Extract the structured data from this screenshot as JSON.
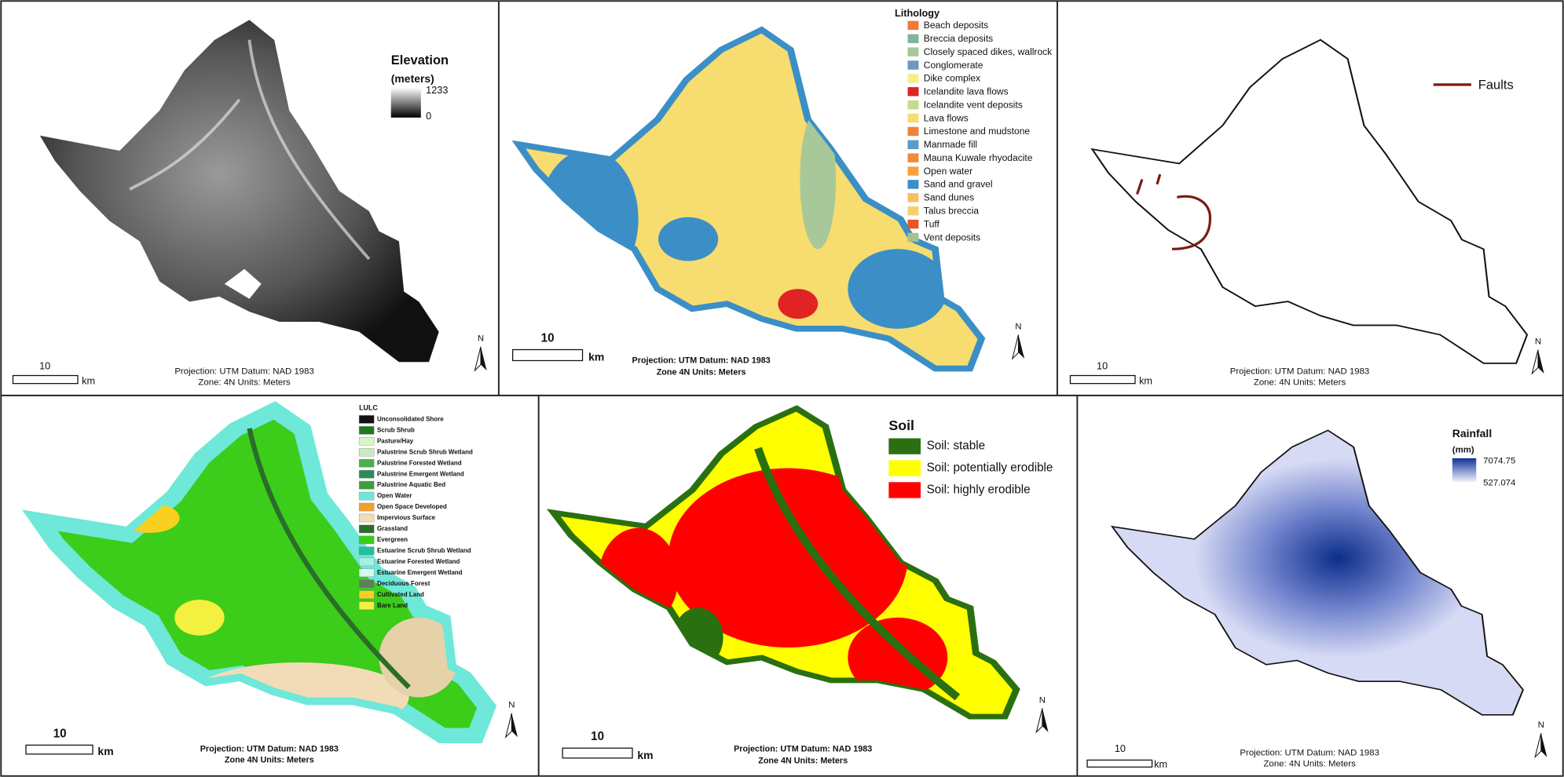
{
  "panels": [
    {
      "legend": {
        "title": "Elevation",
        "subtitle": "(meters)",
        "max": 1233,
        "min": 0
      },
      "scale": {
        "label": 10,
        "unit": "km"
      },
      "north": "N",
      "projection": [
        "Projection: UTM    Datum: NAD 1983",
        "Zone: 4N    Units: Meters"
      ]
    },
    {
      "legend": {
        "title": "Lithology",
        "items": [
          {
            "label": "Beach deposits",
            "color": "#f07a3c"
          },
          {
            "label": "Breccia deposits",
            "color": "#7fb59a"
          },
          {
            "label": "Closely spaced dikes, wallrock",
            "color": "#a8c89a"
          },
          {
            "label": "Conglomerate",
            "color": "#6a9bb8"
          },
          {
            "label": "Dike complex",
            "color": "#f8ef8c"
          },
          {
            "label": "Icelandite lava flows",
            "color": "#e02424"
          },
          {
            "label": "Icelandite vent deposits",
            "color": "#c9d98c"
          },
          {
            "label": "Lava flows",
            "color": "#f7dc6f"
          },
          {
            "label": "Limestone and mudstone",
            "color": "#f0823a"
          },
          {
            "label": "Manmade fill",
            "color": "#5a9cc8"
          },
          {
            "label": "Mauna Kuwale rhyodacite",
            "color": "#f08a3c"
          },
          {
            "label": "Open water",
            "color": "#f4a23c"
          },
          {
            "label": "Sand and gravel",
            "color": "#3b8fc6"
          },
          {
            "label": "Sand dunes",
            "color": "#f6c060"
          },
          {
            "label": "Talus breccia",
            "color": "#f5d070"
          },
          {
            "label": "Tuff",
            "color": "#e8552a"
          },
          {
            "label": "Vent deposits",
            "color": "#a8c08c"
          }
        ]
      },
      "scale": {
        "label": 10,
        "unit": "km"
      },
      "north": "N",
      "projection": [
        "Projection: UTM  Datum: NAD 1983",
        "Zone 4N Units: Meters"
      ]
    },
    {
      "legend": {
        "items": [
          {
            "label": "Faults",
            "color": "#7a1a12"
          }
        ]
      },
      "scale": {
        "label": 10,
        "unit": "km"
      },
      "north": "N",
      "projection": [
        "Projection: UTM    Datum: NAD 1983",
        "Zone: 4N    Units: Meters"
      ]
    },
    {
      "legend": {
        "title": "LULC",
        "items": [
          {
            "label": "Unconsolidated Shore",
            "color": "#111111"
          },
          {
            "label": "Scrub Shrub",
            "color": "#1e7a1e"
          },
          {
            "label": "Pasture/Hay",
            "color": "#d8f5c8"
          },
          {
            "label": "Palustrine Scrub Shrub Wetland",
            "color": "#c8ecc0"
          },
          {
            "label": "Palustrine Forested Wetland",
            "color": "#4caf50"
          },
          {
            "label": "Palustrine Emergent Wetland",
            "color": "#2e8b57"
          },
          {
            "label": "Palustrine Aquatic Bed",
            "color": "#3e9e3e"
          },
          {
            "label": "Open Water",
            "color": "#6ee8d8"
          },
          {
            "label": "Open Space Developed",
            "color": "#f0a030"
          },
          {
            "label": "Impervious Surface",
            "color": "#f2dcb8"
          },
          {
            "label": "Grassland",
            "color": "#2a6e2a"
          },
          {
            "label": "Evergreen",
            "color": "#3ccc1a"
          },
          {
            "label": "Estuarine Scrub Shrub Wetland",
            "color": "#20c0a0"
          },
          {
            "label": "Estuarine Forested Wetland",
            "color": "#a8f0e0"
          },
          {
            "label": "Estuarine Emergent Wetland",
            "color": "#d8f8f0"
          },
          {
            "label": "Deciduous Forest",
            "color": "#5e7e5e"
          },
          {
            "label": "Cultivated Land",
            "color": "#f8d020"
          },
          {
            "label": "Bare Land",
            "color": "#f4f040"
          }
        ]
      },
      "scale": {
        "label": 10,
        "unit": "km"
      },
      "north": "N",
      "projection": [
        "Projection: UTM  Datum: NAD 1983",
        "Zone 4N Units: Meters"
      ]
    },
    {
      "legend": {
        "title": "Soil",
        "items": [
          {
            "label": "Soil: stable",
            "color": "#2a7010"
          },
          {
            "label": "Soil: potentially erodible",
            "color": "#ffff00"
          },
          {
            "label": "Soil: highly erodible",
            "color": "#ff0000"
          }
        ]
      },
      "scale": {
        "label": 10,
        "unit": "km"
      },
      "north": "N",
      "projection": [
        "Projection: UTM  Datum: NAD 1983",
        "Zone 4N Units: Meters"
      ]
    },
    {
      "legend": {
        "title": "Rainfall",
        "subtitle": "(mm)",
        "max": 7074.75,
        "min": 527.074
      },
      "scale": {
        "label": 10,
        "unit": "km"
      },
      "north": "N",
      "projection": [
        "Projection: UTM    Datum: NAD 1983",
        "Zone: 4N    Units: Meters"
      ]
    }
  ]
}
